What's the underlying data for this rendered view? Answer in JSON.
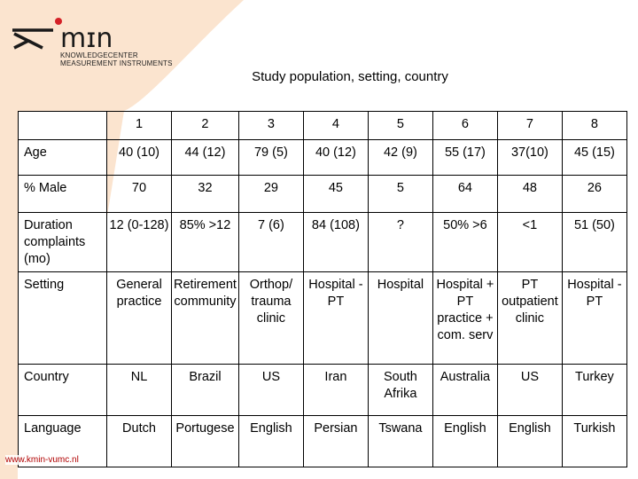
{
  "logo": {
    "wordmark": "kmin",
    "line1": "KNOWLEDGECENTER",
    "line2": "MEASUREMENT INSTRUMENTS",
    "accent_color": "#d42027"
  },
  "title": "Study population, setting, country",
  "table": {
    "header": [
      "",
      "1",
      "2",
      "3",
      "4",
      "5",
      "6",
      "7",
      "8"
    ],
    "rows": [
      {
        "label": "Age",
        "cells": [
          "40 (10)",
          "44 (12)",
          "79 (5)",
          "40 (12)",
          "42 (9)",
          "55 (17)",
          "37(10)",
          "45 (15)"
        ]
      },
      {
        "label": "% Male",
        "cells": [
          "70",
          "32",
          "29",
          "45",
          "5",
          "64",
          "48",
          "26"
        ]
      },
      {
        "label": "Duration complaints (mo)",
        "cells": [
          "12 (0-128)",
          "85% >12",
          "7 (6)",
          "84 (108)",
          "?",
          "50% >6",
          "<1",
          "51 (50)"
        ]
      },
      {
        "label": "Setting",
        "cells": [
          "General practice",
          "Retirement community",
          "Orthop/ trauma clinic",
          "Hospital - PT",
          "Hospital",
          "Hospital + PT practice + com. serv",
          "PT outpatient clinic",
          "Hospital - PT"
        ]
      },
      {
        "label": "Country",
        "cells": [
          "NL",
          "Brazil",
          "US",
          "Iran",
          "South Afrika",
          "Australia",
          "US",
          "Turkey"
        ]
      },
      {
        "label": "Language",
        "cells": [
          "Dutch",
          "Portugese",
          "English",
          "Persian",
          "Tswana",
          "English",
          "English",
          "Turkish"
        ]
      }
    ]
  },
  "footer_url": "www.kmin-vumc.nl",
  "colors": {
    "background_shape": "#fbe4cf",
    "url": "#b00000"
  }
}
